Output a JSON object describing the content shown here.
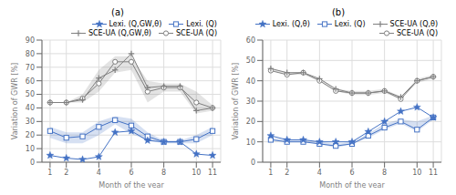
{
  "chart_data": [
    {
      "type": "line",
      "title": "(a)",
      "x": [
        1,
        2,
        3,
        4,
        5,
        6,
        7,
        8,
        9,
        10,
        11
      ],
      "xlabel": "Month of the year",
      "ylabel": "Variation of GWR [%]",
      "xlim": [
        0.5,
        11.5
      ],
      "xticks": [
        1,
        2,
        4,
        6,
        8,
        10,
        11
      ],
      "ylim": [
        0,
        90
      ],
      "yticks": [
        0,
        10,
        20,
        30,
        40,
        50,
        60,
        70,
        80,
        90
      ],
      "grid": true,
      "legend": "upper right",
      "series": [
        {
          "name": "Lexi. (Q,GW,θ)",
          "color": "#4472C4",
          "marker": "star",
          "values": [
            5,
            3,
            2,
            4,
            22,
            23,
            16,
            15,
            15,
            6,
            5
          ]
        },
        {
          "name": "Lexi. (Q)",
          "color": "#4472C4",
          "marker": "square",
          "values": [
            23,
            18,
            19,
            26,
            31,
            27,
            19,
            15,
            15,
            17,
            23
          ],
          "lo": [
            18,
            14,
            14,
            20,
            28,
            21,
            16,
            14,
            14,
            14,
            20
          ],
          "hi": [
            26,
            22,
            22,
            30,
            34,
            32,
            22,
            16,
            16,
            20,
            26
          ]
        },
        {
          "name": "SCE-UA (Q,GW,θ)",
          "color": "#808080",
          "marker": "plus",
          "values": [
            44,
            44,
            46,
            62,
            68,
            80,
            55,
            56,
            56,
            38,
            40
          ]
        },
        {
          "name": "SCE-UA (Q)",
          "color": "#808080",
          "marker": "circle",
          "values": [
            44,
            44,
            47,
            58,
            74,
            74,
            52,
            55,
            55,
            44,
            40
          ],
          "lo": [
            44,
            44,
            44,
            52,
            66,
            68,
            44,
            52,
            52,
            36,
            38
          ],
          "hi": [
            44,
            44,
            50,
            68,
            78,
            78,
            60,
            58,
            58,
            52,
            42
          ]
        }
      ]
    },
    {
      "type": "line",
      "title": "(b)",
      "x": [
        1,
        2,
        3,
        4,
        5,
        6,
        7,
        8,
        9,
        10,
        11
      ],
      "xlabel": "Month of the year",
      "ylabel": "Variation of GWR [%]",
      "xlim": [
        0.5,
        11.5
      ],
      "xticks": [
        1,
        2,
        4,
        6,
        8,
        10,
        11
      ],
      "ylim": [
        0,
        60
      ],
      "yticks": [
        0,
        10,
        20,
        30,
        40,
        50,
        60
      ],
      "grid": true,
      "legend": "upper right",
      "series": [
        {
          "name": "Lexi. (Q,θ)",
          "color": "#4472C4",
          "marker": "star",
          "values": [
            13,
            11,
            11,
            10,
            10,
            10,
            15,
            20,
            25,
            27,
            22
          ]
        },
        {
          "name": "Lexi. (Q)",
          "color": "#4472C4",
          "marker": "square",
          "values": [
            11,
            10,
            10,
            9,
            8,
            9,
            13,
            17,
            20,
            16,
            22
          ],
          "lo": [
            11,
            10,
            10,
            9,
            7,
            9,
            12,
            16,
            19,
            15,
            21
          ],
          "hi": [
            12,
            11,
            11,
            10,
            9,
            10,
            14,
            19,
            21,
            20,
            23
          ]
        },
        {
          "name": "SCE-UA (Q,θ)",
          "color": "#808080",
          "marker": "plus",
          "values": [
            46,
            44,
            44,
            41,
            36,
            34,
            34,
            35,
            32,
            40,
            42
          ]
        },
        {
          "name": "SCE-UA (Q)",
          "color": "#808080",
          "marker": "circle",
          "values": [
            45,
            43,
            44,
            40,
            35,
            34,
            34,
            35,
            31,
            40,
            42
          ],
          "lo": [
            45,
            43,
            43,
            40,
            35,
            33,
            33,
            34,
            31,
            39,
            41
          ],
          "hi": [
            46,
            44,
            44,
            41,
            36,
            35,
            35,
            36,
            32,
            41,
            43
          ]
        }
      ]
    }
  ]
}
